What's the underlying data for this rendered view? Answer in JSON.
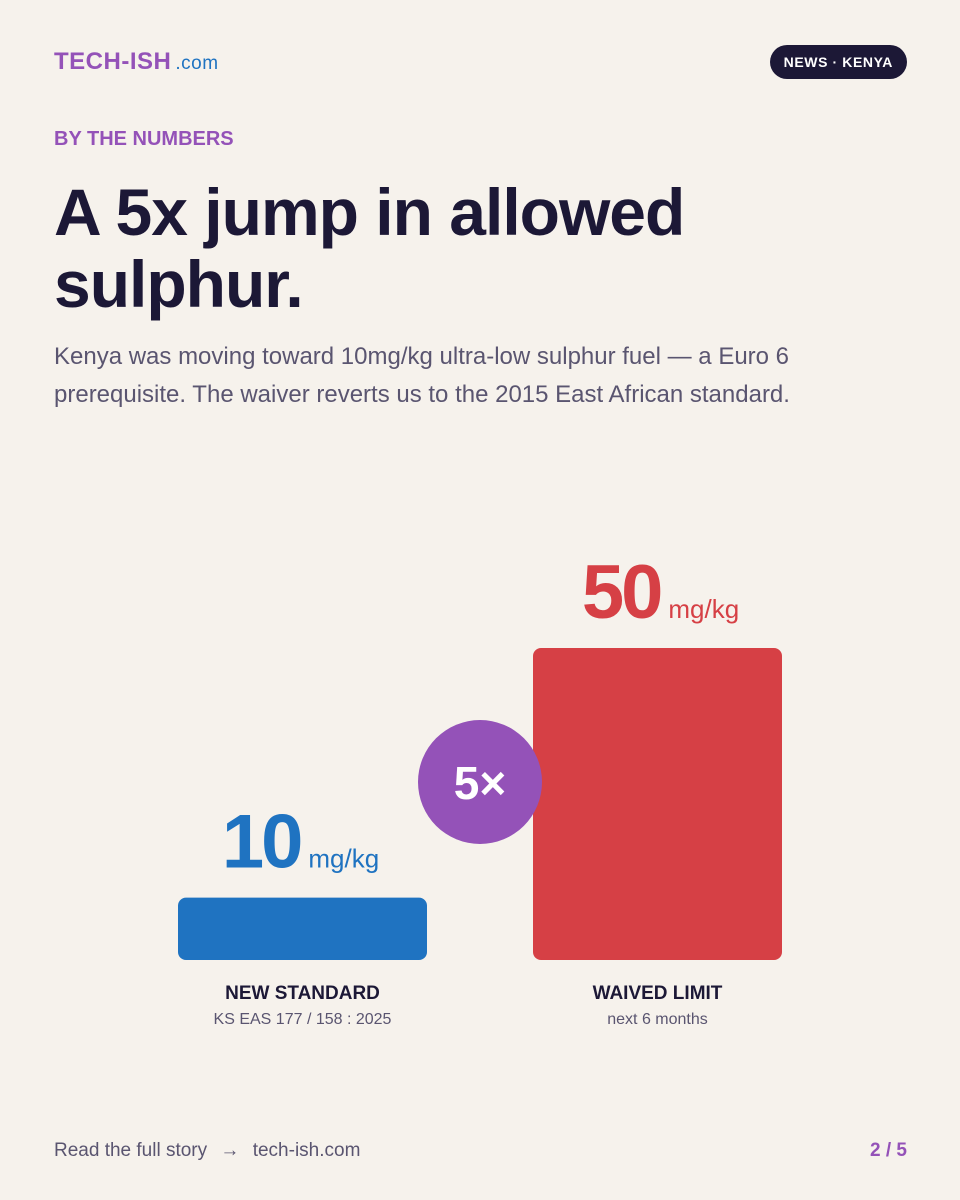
{
  "header": {
    "brand": "TECH-ISH",
    "brand_suffix": ".com",
    "tag": "NEWS · KENYA"
  },
  "kicker": "BY THE NUMBERS",
  "title": "A 5x jump in allowed sulphur.",
  "subtitle": "Kenya was moving toward 10mg/kg ultra-low sulphur fuel — a Euro 6 prerequisite. The waiver reverts us to the 2015 East African standard.",
  "chart_data": {
    "type": "bar",
    "categories": [
      "NEW STANDARD",
      "WAIVED LIMIT"
    ],
    "sublabels": [
      "KS EAS 177 / 158 : 2025",
      "next 6 months"
    ],
    "values": [
      10,
      50
    ],
    "unit": "mg/kg",
    "colors": [
      "#1f73c1",
      "#d64045"
    ],
    "annotation": "5×"
  },
  "footer": {
    "cta": "Read the full story",
    "link": "tech-ish.com",
    "page": "2 / 5"
  }
}
